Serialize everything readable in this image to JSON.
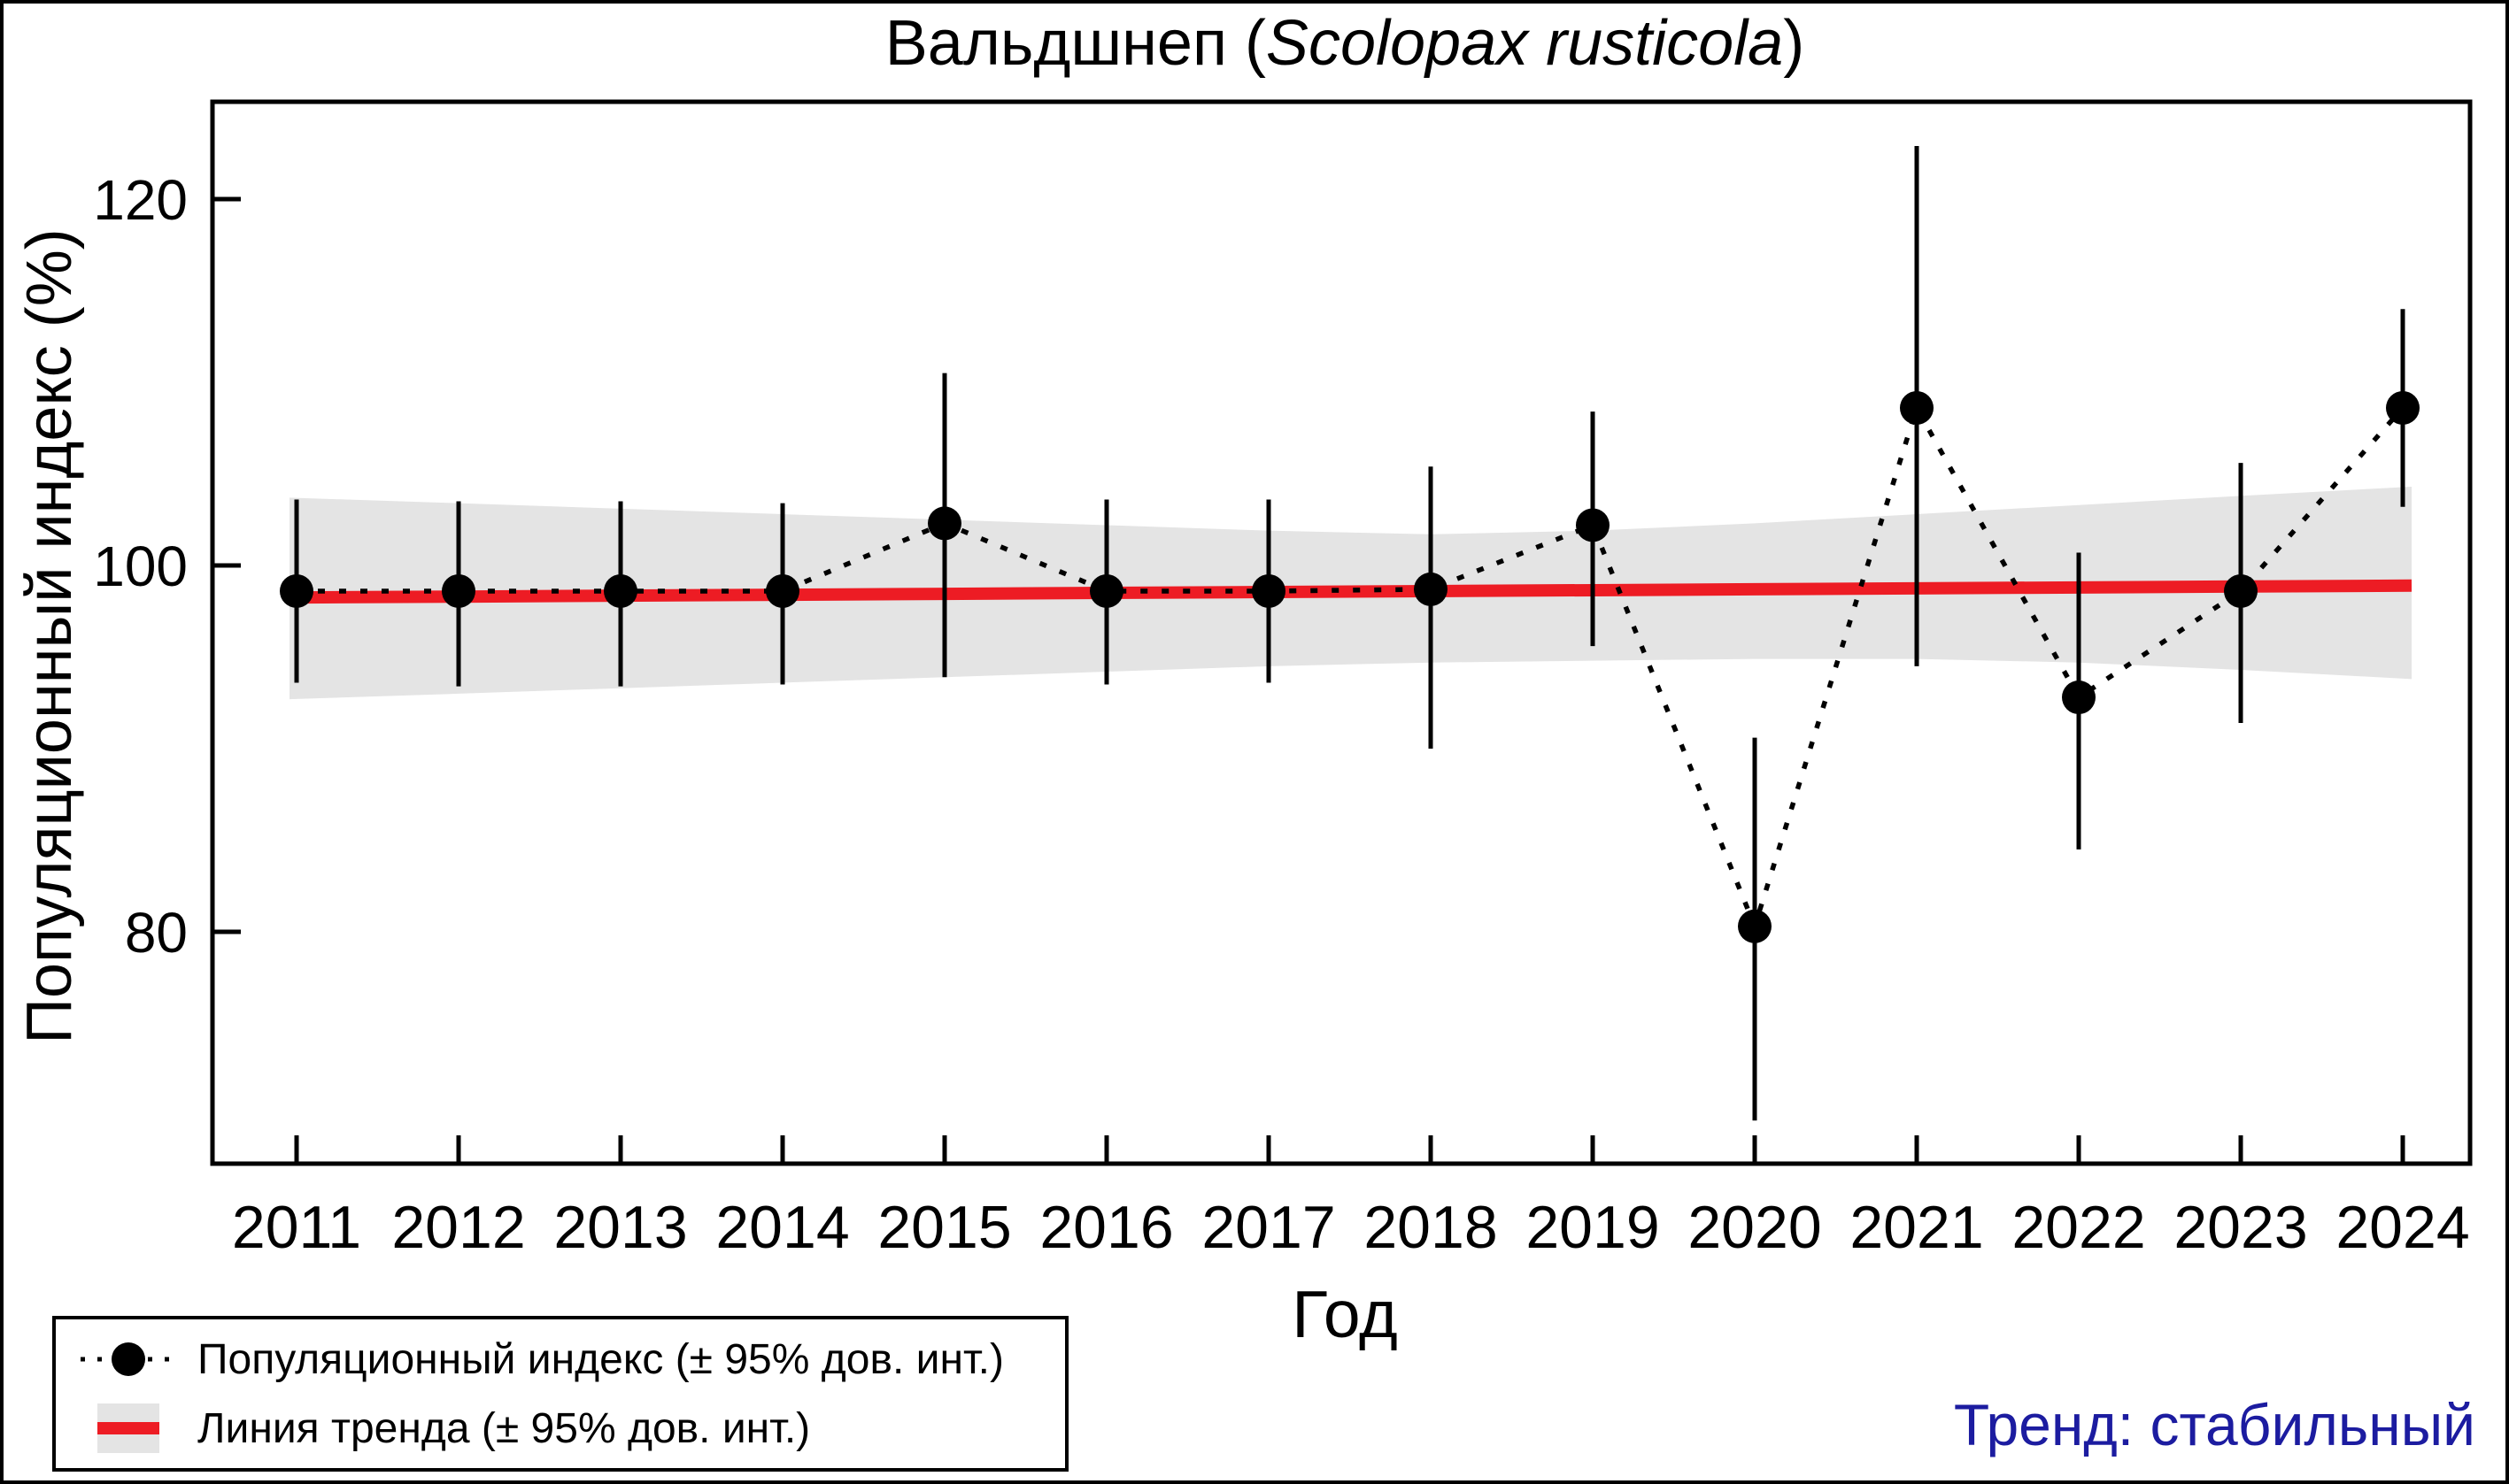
{
  "title": {
    "prefix": "Вальдшнеп (",
    "species": "Scolopax rusticola",
    "suffix": ")"
  },
  "axes": {
    "ylabel": "Популяционный индекс (%)",
    "xlabel": "Год"
  },
  "legend": {
    "items": [
      {
        "symbol": "point-with-dotted-line",
        "label": "Популяционный индекс (± 95% дов. инт.)"
      },
      {
        "symbol": "red-line-on-gray-band",
        "label": "Линия тренда (± 95% дов. инт.)"
      }
    ]
  },
  "trend_label": "Тренд: стабильный",
  "colors": {
    "point": "#000000",
    "index_line": "#000000",
    "trend_line": "#ed1c24",
    "ci_band": "#e4e4e4",
    "trend_text": "#1c1ca0",
    "axis": "#000000"
  },
  "chart_data": {
    "type": "line",
    "title": "Вальдшнеп (Scolopax rusticola)",
    "xlabel": "Год",
    "ylabel": "Популяционный индекс (%)",
    "x": [
      2011,
      2012,
      2013,
      2014,
      2015,
      2016,
      2017,
      2018,
      2019,
      2020,
      2021,
      2022,
      2023,
      2024
    ],
    "yticks": [
      80,
      100,
      120
    ],
    "ylim": [
      67,
      125.5
    ],
    "grid": false,
    "legend_position": "bottom-left",
    "series": [
      {
        "name": "Популяционный индекс (± 95% дов. инт.)",
        "style": "black dots with 95% CI error bars, dotted connector",
        "values": [
          98.6,
          98.6,
          98.6,
          98.6,
          102.3,
          98.6,
          98.6,
          98.7,
          102.2,
          80.3,
          108.6,
          92.8,
          98.6,
          108.6
        ],
        "ci_low": [
          93.6,
          93.4,
          93.4,
          93.5,
          93.9,
          93.5,
          93.6,
          90.0,
          95.6,
          69.7,
          94.5,
          84.5,
          91.4,
          103.2
        ],
        "ci_high": [
          103.6,
          103.5,
          103.5,
          103.4,
          110.5,
          103.6,
          103.6,
          105.4,
          108.4,
          90.6,
          122.9,
          100.7,
          105.6,
          114.0
        ]
      },
      {
        "name": "Линия тренда (± 95% дов. инт.)",
        "style": "thick red line with gray 95% confidence band",
        "values": [
          98.25,
          98.3,
          98.35,
          98.4,
          98.45,
          98.5,
          98.55,
          98.6,
          98.65,
          98.7,
          98.75,
          98.8,
          98.85,
          98.9
        ],
        "band_low": [
          92.7,
          93.0,
          93.3,
          93.6,
          93.9,
          94.2,
          94.5,
          94.7,
          94.8,
          94.9,
          94.9,
          94.7,
          94.3,
          93.8
        ],
        "band_high": [
          103.7,
          103.4,
          103.1,
          102.8,
          102.5,
          102.2,
          101.9,
          101.7,
          101.9,
          102.3,
          102.8,
          103.3,
          103.8,
          104.3
        ]
      }
    ]
  }
}
